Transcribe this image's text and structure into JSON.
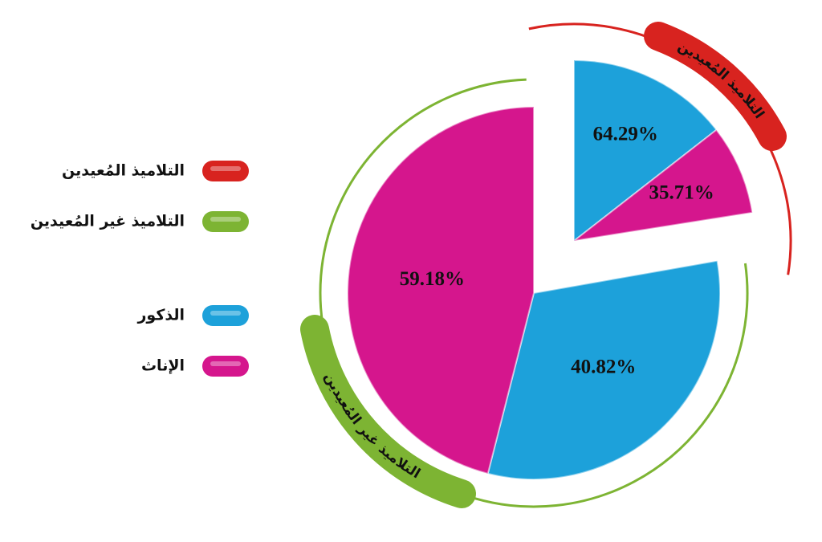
{
  "chart_data": [
    {
      "type": "pie",
      "title": "التلاميذ المُعيدين",
      "color": "#d8231f",
      "categories": [
        "الذكور",
        "الإناث"
      ],
      "colors": [
        "#1da1da",
        "#d5168d"
      ],
      "values": [
        64.29,
        35.71
      ],
      "value_labels": [
        "64.29%",
        "35.71%"
      ]
    },
    {
      "type": "pie",
      "title": "التلاميذ غير المُعيدين",
      "color": "#7db433",
      "categories": [
        "الذكور",
        "الإناث"
      ],
      "colors": [
        "#1da1da",
        "#d5168d"
      ],
      "values": [
        40.82,
        59.18
      ],
      "value_labels": [
        "40.82%",
        "59.18%"
      ]
    }
  ]
}
